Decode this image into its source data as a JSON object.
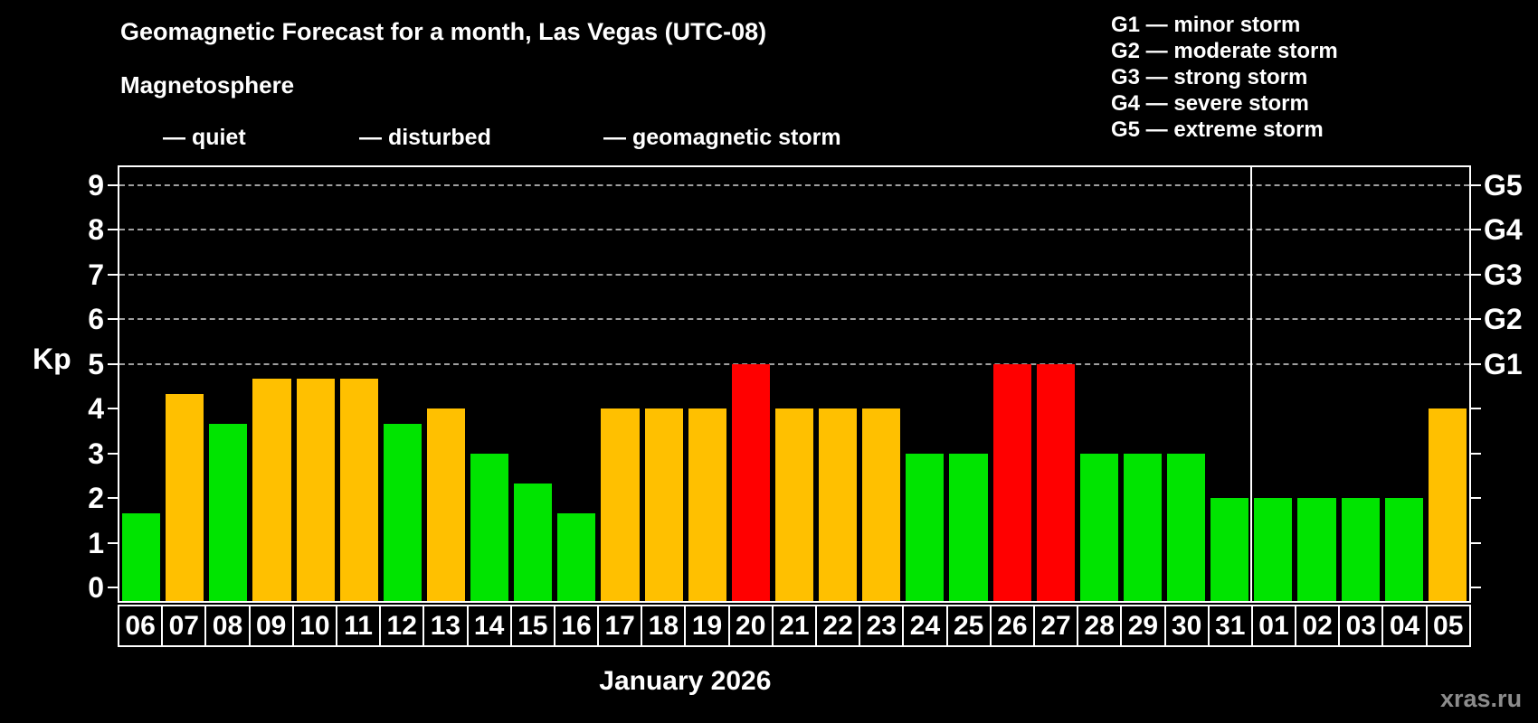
{
  "title": "Geomagnetic Forecast for a month, Las Vegas (UTC-08)",
  "subtitle": "Magnetosphere",
  "legend": {
    "quiet_label": "— quiet",
    "disturbed_label": "— disturbed",
    "storm_label": "— geomagnetic storm"
  },
  "g_legend": [
    "G1 — minor storm",
    "G2 — moderate storm",
    "G3 — strong storm",
    "G4 — severe storm",
    "G5 — extreme storm"
  ],
  "colors": {
    "quiet": "#00e400",
    "disturbed": "#ffc000",
    "storm": "#ff0000",
    "grid": "#a0a0a0",
    "axis": "#ffffff",
    "watermark": "#8c8c8c"
  },
  "watermark": "xras.ru",
  "chart_data": {
    "type": "bar",
    "title": "Geomagnetic Forecast for a month, Las Vegas (UTC-08)",
    "ylabel": "Kp",
    "xlabel": "January 2026",
    "ylim": [
      -0.3,
      9.4
    ],
    "y_ticks": [
      0,
      1,
      2,
      3,
      4,
      5,
      6,
      7,
      8,
      9
    ],
    "g_levels": [
      {
        "label": "G1",
        "kp": 5
      },
      {
        "label": "G2",
        "kp": 6
      },
      {
        "label": "G3",
        "kp": 7
      },
      {
        "label": "G4",
        "kp": 8
      },
      {
        "label": "G5",
        "kp": 9
      }
    ],
    "grid": "dashed at G storm levels only",
    "legend_position": "top",
    "month_boundary_index": 26,
    "categories": [
      "06",
      "07",
      "08",
      "09",
      "10",
      "11",
      "12",
      "13",
      "14",
      "15",
      "16",
      "17",
      "18",
      "19",
      "20",
      "21",
      "22",
      "23",
      "24",
      "25",
      "26",
      "27",
      "28",
      "29",
      "30",
      "31",
      "01",
      "02",
      "03",
      "04",
      "05"
    ],
    "values": [
      1.67,
      4.33,
      3.67,
      4.67,
      4.67,
      4.67,
      3.67,
      4,
      3,
      2.33,
      1.67,
      4,
      4,
      4,
      5,
      4,
      4,
      4,
      3,
      3,
      5,
      5,
      3,
      3,
      3,
      2,
      2,
      2,
      2,
      2,
      4
    ],
    "statuses": [
      "quiet",
      "disturbed",
      "quiet",
      "disturbed",
      "disturbed",
      "disturbed",
      "quiet",
      "disturbed",
      "quiet",
      "quiet",
      "quiet",
      "disturbed",
      "disturbed",
      "disturbed",
      "storm",
      "disturbed",
      "disturbed",
      "disturbed",
      "quiet",
      "quiet",
      "storm",
      "storm",
      "quiet",
      "quiet",
      "quiet",
      "quiet",
      "quiet",
      "quiet",
      "quiet",
      "quiet",
      "disturbed"
    ]
  }
}
